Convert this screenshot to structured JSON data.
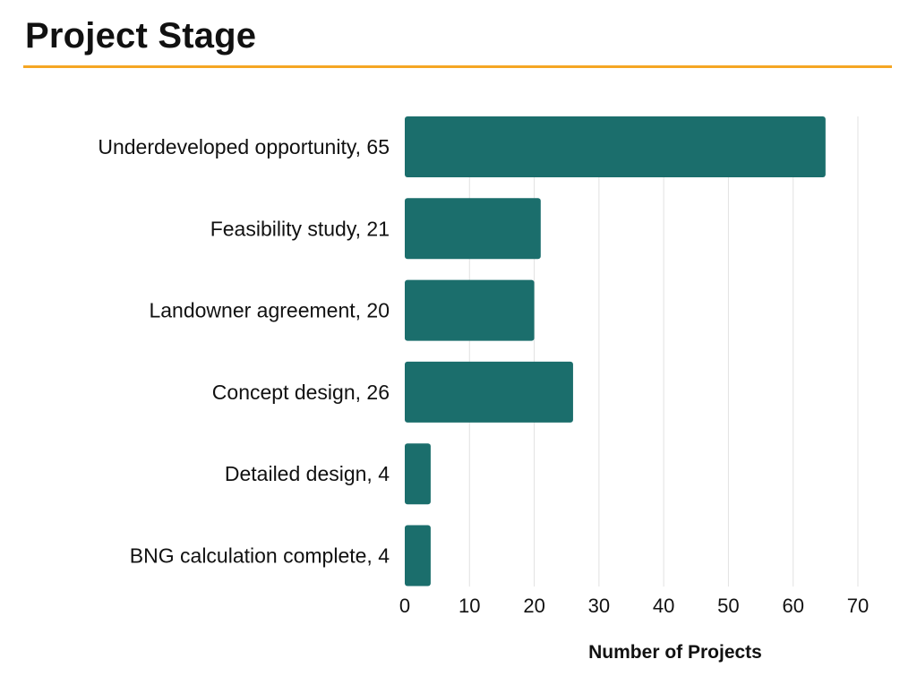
{
  "title": "Project Stage",
  "colors": {
    "accent": "#F5A623",
    "bar": "#1B6E6C",
    "grid": "#E2E2E2"
  },
  "chart_data": {
    "type": "bar",
    "orientation": "horizontal",
    "categories": [
      "Underdeveloped opportunity",
      "Feasibility study",
      "Landowner agreement",
      "Concept design",
      "Detailed design",
      "BNG calculation complete"
    ],
    "category_labels": [
      "Underdeveloped opportunity, 65",
      "Feasibility study, 21",
      "Landowner agreement, 20",
      "Concept design, 26",
      "Detailed design, 4",
      "BNG calculation complete, 4"
    ],
    "values": [
      65,
      21,
      20,
      26,
      4,
      4
    ],
    "xlabel": "Number of Projects",
    "ylabel": "",
    "xlim": [
      0,
      70
    ],
    "xticks": [
      0,
      10,
      20,
      30,
      40,
      50,
      60,
      70
    ],
    "grid": "vertical"
  }
}
